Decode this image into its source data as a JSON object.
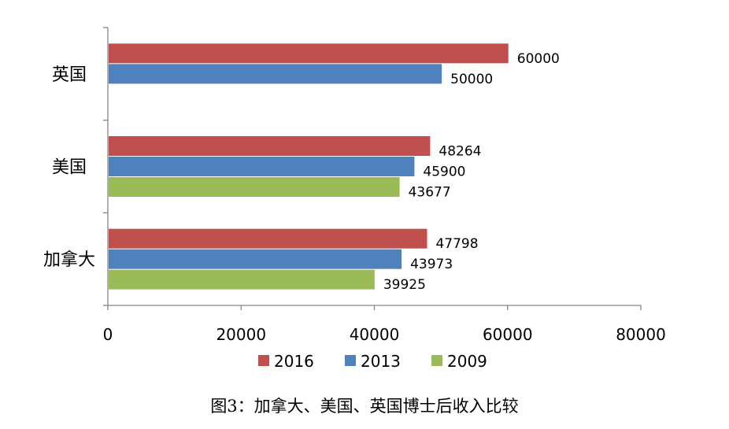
{
  "caption": "图3：加拿大、美国、英国博士后收入比较",
  "chart_data": {
    "type": "bar",
    "orientation": "horizontal",
    "categories": [
      "英国",
      "美国",
      "加拿大"
    ],
    "series": [
      {
        "name": "2016",
        "color": "#c0504d",
        "values": [
          60000,
          48264,
          47798
        ]
      },
      {
        "name": "2013",
        "color": "#4f81bd",
        "values": [
          50000,
          45900,
          43973
        ]
      },
      {
        "name": "2009",
        "color": "#9bbb59",
        "values": [
          null,
          43677,
          39925
        ]
      }
    ],
    "data_labels": true,
    "xlim": [
      0,
      80000
    ],
    "xticks": [
      "0",
      "20000",
      "40000",
      "60000",
      "80000"
    ],
    "grid": false,
    "legend_position": "bottom"
  }
}
